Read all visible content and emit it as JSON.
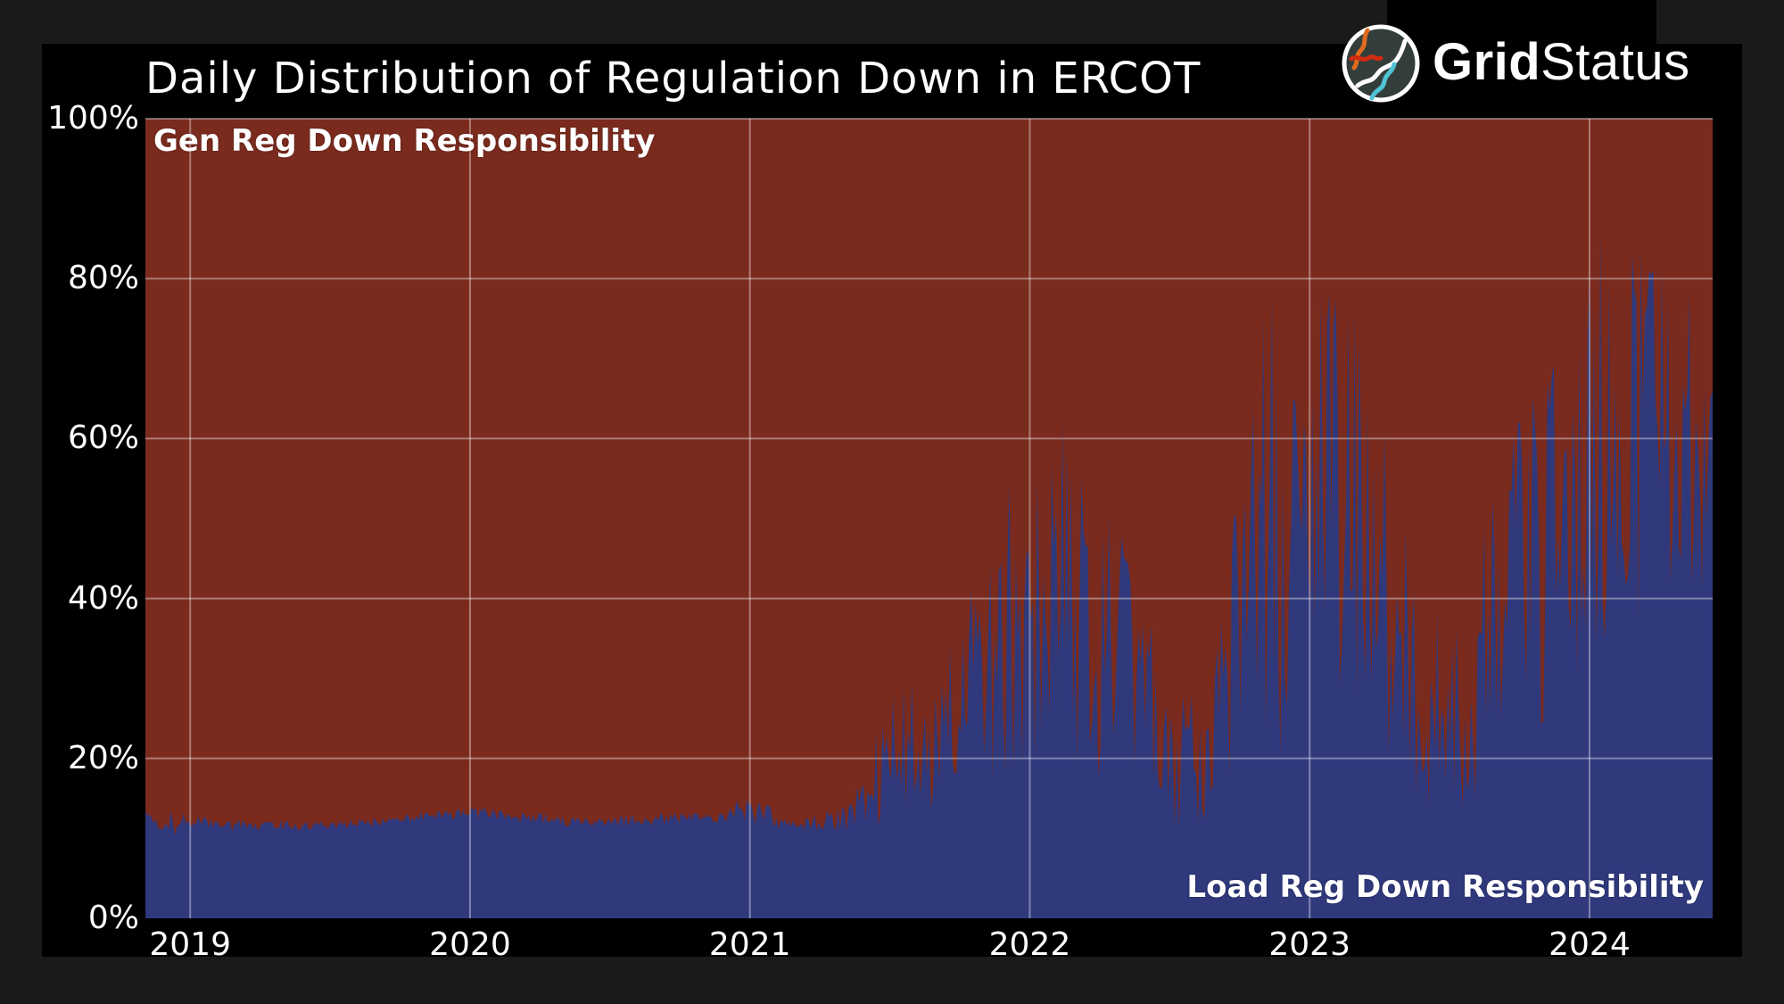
{
  "frame": {
    "background": "#1a1a1a",
    "card_background": "#000000"
  },
  "header": {
    "title": "Daily Distribution of Regulation Down in ERCOT"
  },
  "logo": {
    "brand_bold": "Grid",
    "brand_regular": "Status",
    "circle_colors": {
      "background": "#333e3c",
      "ring": "#ffffff",
      "orange": "#e06b1f",
      "red": "#cf2c12",
      "white": "#ffffff",
      "cyan": "#4fc4d6"
    }
  },
  "chart_data": {
    "type": "area",
    "stacked": true,
    "title": "Daily Distribution of Regulation Down in ERCOT",
    "grid": true,
    "grid_color": "rgba(255,255,255,0.38)",
    "x_axis": {
      "domain": [
        2018.84,
        2024.44
      ],
      "tick_values": [
        2019,
        2020,
        2021,
        2022,
        2023,
        2024
      ],
      "tick_labels": [
        "2019",
        "2020",
        "2021",
        "2022",
        "2023",
        "2024"
      ]
    },
    "y_axis": {
      "domain": [
        0,
        100
      ],
      "unit": "percent",
      "tick_values": [
        0,
        20,
        40,
        60,
        80,
        100
      ],
      "tick_labels": [
        "0%",
        "20%",
        "40%",
        "60%",
        "80%",
        "100%"
      ]
    },
    "series": [
      {
        "name": "Load Reg Down Responsibility",
        "color": "#2f397c",
        "role": "lower-share",
        "label_position": "bottom-right"
      },
      {
        "name": "Gen Reg Down Responsibility",
        "color": "#7a2b1e",
        "role": "upper-share-complement-to-100",
        "label_position": "top-left"
      }
    ],
    "annotations": [
      {
        "text": "Gen Reg Down Responsibility"
      },
      {
        "text": "Load Reg Down Responsibility"
      }
    ],
    "load_share_envelope": {
      "description": "Daily Load Reg Down share of total (percent). Values oscillate day-to-day within [lo,hi]; Gen share = 100 - Load share.",
      "columns": [
        "year_decimal",
        "lo_pct",
        "hi_pct"
      ],
      "points": [
        [
          2018.84,
          12.8,
          14.2
        ],
        [
          2018.92,
          9.5,
          13.5
        ],
        [
          2019.0,
          11.5,
          13.2
        ],
        [
          2019.12,
          10.8,
          12.5
        ],
        [
          2019.3,
          11.0,
          12.3
        ],
        [
          2019.5,
          10.9,
          12.2
        ],
        [
          2019.7,
          11.3,
          12.8
        ],
        [
          2019.88,
          12.2,
          13.8
        ],
        [
          2019.98,
          12.5,
          14.2
        ],
        [
          2020.15,
          12.0,
          13.5
        ],
        [
          2020.35,
          11.4,
          12.8
        ],
        [
          2020.55,
          11.5,
          13.0
        ],
        [
          2020.75,
          11.7,
          13.2
        ],
        [
          2020.92,
          12.0,
          14.0
        ],
        [
          2021.0,
          12.0,
          15.8
        ],
        [
          2021.1,
          10.8,
          13.2
        ],
        [
          2021.22,
          10.5,
          12.8
        ],
        [
          2021.35,
          10.8,
          14.5
        ],
        [
          2021.45,
          11.5,
          26.0
        ],
        [
          2021.55,
          12.5,
          29.0
        ],
        [
          2021.65,
          13.5,
          31.0
        ],
        [
          2021.75,
          15.0,
          36.0
        ],
        [
          2021.85,
          17.0,
          49.0
        ],
        [
          2021.95,
          19.0,
          56.0
        ],
        [
          2022.05,
          20.0,
          58.0
        ],
        [
          2022.14,
          20.0,
          64.0
        ],
        [
          2022.22,
          18.0,
          52.0
        ],
        [
          2022.3,
          17.0,
          50.0
        ],
        [
          2022.38,
          15.0,
          44.0
        ],
        [
          2022.47,
          12.0,
          32.0
        ],
        [
          2022.56,
          11.0,
          29.0
        ],
        [
          2022.65,
          13.0,
          34.0
        ],
        [
          2022.72,
          18.0,
          48.0
        ],
        [
          2022.8,
          24.0,
          70.0
        ],
        [
          2022.86,
          8.0,
          79.0
        ],
        [
          2022.93,
          20.0,
          66.0
        ],
        [
          2022.98,
          5.0,
          62.0
        ],
        [
          2023.03,
          33.0,
          86.0
        ],
        [
          2023.09,
          30.0,
          84.0
        ],
        [
          2023.16,
          27.0,
          77.0
        ],
        [
          2023.25,
          22.0,
          64.0
        ],
        [
          2023.33,
          17.0,
          50.0
        ],
        [
          2023.42,
          14.0,
          40.0
        ],
        [
          2023.52,
          13.0,
          36.0
        ],
        [
          2023.62,
          16.0,
          49.0
        ],
        [
          2023.72,
          20.0,
          60.0
        ],
        [
          2023.82,
          24.0,
          67.0
        ],
        [
          2023.92,
          28.0,
          78.0
        ],
        [
          2024.0,
          33.0,
          88.0
        ],
        [
          2024.08,
          36.0,
          91.0
        ],
        [
          2024.16,
          37.0,
          92.0
        ],
        [
          2024.24,
          35.0,
          87.0
        ],
        [
          2024.32,
          33.0,
          82.0
        ],
        [
          2024.4,
          38.0,
          74.0
        ],
        [
          2024.44,
          52.0,
          66.0
        ]
      ]
    }
  }
}
